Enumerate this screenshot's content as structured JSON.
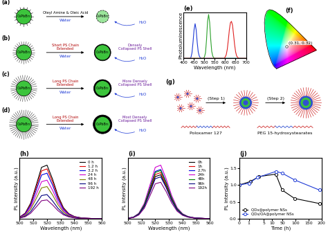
{
  "chart_data": [
    {
      "type": "line",
      "title": "(e)",
      "x_label": "Wavelength (nm)",
      "y_label": "Photoluminescence",
      "x": [
        400,
        405,
        410,
        415,
        420,
        425,
        430,
        435,
        440,
        445,
        450,
        455,
        460,
        465,
        470,
        475,
        480,
        485,
        490,
        495,
        500,
        505,
        510,
        515,
        520,
        525,
        530,
        535,
        540,
        545,
        550,
        555,
        560,
        565,
        570,
        575,
        580,
        585,
        590,
        595,
        600,
        605,
        610,
        615,
        620,
        625,
        630,
        635,
        640,
        645,
        650,
        655,
        660,
        665,
        670,
        675,
        680,
        685,
        690,
        695,
        700
      ],
      "series": [
        {
          "color": "#1f3bd6",
          "values": [
            0,
            0,
            0,
            0,
            0,
            0,
            0,
            0.02,
            0.12,
            0.35,
            0.62,
            0.75,
            0.62,
            0.35,
            0.14,
            0.05,
            0.01,
            0,
            0,
            0,
            0,
            0,
            0,
            0,
            0,
            0,
            0,
            0,
            0,
            0,
            0,
            0,
            0,
            0,
            0,
            0,
            0,
            0,
            0,
            0,
            0,
            0,
            0,
            0,
            0,
            0,
            0,
            0,
            0,
            0,
            0,
            0,
            0,
            0,
            0,
            0,
            0,
            0,
            0,
            0,
            0
          ]
        },
        {
          "color": "#2aa02a",
          "values": [
            0,
            0,
            0,
            0,
            0,
            0,
            0,
            0,
            0,
            0,
            0,
            0,
            0,
            0,
            0,
            0,
            0,
            0,
            0,
            0,
            0.03,
            0.12,
            0.4,
            0.8,
            0.95,
            0.78,
            0.42,
            0.15,
            0.05,
            0.01,
            0,
            0,
            0,
            0,
            0,
            0,
            0,
            0,
            0,
            0,
            0,
            0,
            0,
            0,
            0,
            0,
            0,
            0,
            0,
            0,
            0,
            0,
            0,
            0,
            0,
            0,
            0,
            0,
            0,
            0,
            0
          ]
        },
        {
          "color": "#e02020",
          "values": [
            0,
            0,
            0,
            0,
            0,
            0,
            0,
            0,
            0,
            0,
            0,
            0,
            0,
            0,
            0,
            0,
            0,
            0,
            0,
            0,
            0,
            0,
            0,
            0,
            0,
            0,
            0,
            0,
            0,
            0,
            0,
            0,
            0,
            0,
            0,
            0,
            0,
            0,
            0,
            0,
            0.03,
            0.08,
            0.2,
            0.4,
            0.62,
            0.77,
            0.8,
            0.72,
            0.52,
            0.3,
            0.14,
            0.05,
            0.02,
            0,
            0,
            0,
            0,
            0,
            0,
            0,
            0
          ]
        }
      ],
      "xlim": [
        400,
        700
      ],
      "xticks": [
        400,
        450,
        500,
        550,
        600,
        650,
        700
      ],
      "ylim": [
        0,
        1
      ],
      "tick_labels": "x"
    },
    {
      "type": "line",
      "title": "(h)",
      "x_label": "Wavelength (nm)",
      "y_label": "PL intensity (a.u.)",
      "x": [
        500,
        504,
        508,
        512,
        516,
        520,
        524,
        528,
        532,
        536,
        540,
        544,
        548,
        552,
        556,
        560
      ],
      "series": [
        {
          "name": "0 h",
          "color": "#000000",
          "values": [
            0.03,
            0.1,
            0.28,
            0.6,
            0.93,
            0.97,
            0.72,
            0.42,
            0.2,
            0.09,
            0.04,
            0.02,
            0.01,
            0.005,
            0,
            0
          ]
        },
        {
          "name": "1.2 h",
          "color": "#e00000",
          "values": [
            0.028,
            0.093,
            0.26,
            0.558,
            0.865,
            0.902,
            0.67,
            0.391,
            0.186,
            0.084,
            0.037,
            0.019,
            0.009,
            0.005,
            0,
            0
          ]
        },
        {
          "name": "3.2 h",
          "color": "#0000e0",
          "values": [
            0.026,
            0.085,
            0.238,
            0.51,
            0.791,
            0.825,
            0.612,
            0.357,
            0.17,
            0.077,
            0.034,
            0.017,
            0.009,
            0.004,
            0,
            0
          ]
        },
        {
          "name": "24 h",
          "color": "#d000d0",
          "values": [
            0.022,
            0.072,
            0.202,
            0.432,
            0.67,
            0.698,
            0.518,
            0.302,
            0.144,
            0.065,
            0.029,
            0.014,
            0.007,
            0.004,
            0,
            0
          ]
        },
        {
          "name": "48 h",
          "color": "#808000",
          "values": [
            0.018,
            0.06,
            0.168,
            0.36,
            0.558,
            0.582,
            0.432,
            0.252,
            0.12,
            0.054,
            0.024,
            0.012,
            0.006,
            0.003,
            0,
            0
          ]
        },
        {
          "name": "96 h",
          "color": "#000080",
          "values": [
            0.014,
            0.045,
            0.126,
            0.27,
            0.419,
            0.437,
            0.324,
            0.189,
            0.09,
            0.041,
            0.018,
            0.009,
            0.005,
            0.002,
            0,
            0
          ]
        },
        {
          "name": "192 h",
          "color": "#800080",
          "values": [
            0.011,
            0.035,
            0.098,
            0.21,
            0.326,
            0.34,
            0.252,
            0.147,
            0.07,
            0.032,
            0.014,
            0.007,
            0.004,
            0.002,
            0,
            0
          ]
        }
      ],
      "xlim": [
        500,
        560
      ],
      "xticks": [
        500,
        510,
        520,
        530,
        540,
        550,
        560
      ],
      "ylim": [
        0,
        1.1
      ],
      "tick_labels": "x",
      "legend": "upper right"
    },
    {
      "type": "line",
      "title": "(i)",
      "x_label": "Wavelength (nm)",
      "y_label": "PL intensity (a.u.)",
      "x": [
        500,
        504,
        508,
        512,
        516,
        520,
        524,
        528,
        532,
        536,
        540,
        544,
        548,
        552,
        556,
        560
      ],
      "series": [
        {
          "name": "0h",
          "color": "#000000",
          "values": [
            0.008,
            0.025,
            0.082,
            0.23,
            0.492,
            0.763,
            0.795,
            0.59,
            0.344,
            0.164,
            0.074,
            0.033,
            0.016,
            0.008,
            0.004,
            0
          ]
        },
        {
          "name": "1h",
          "color": "#e00000",
          "values": [
            0.009,
            0.026,
            0.086,
            0.241,
            0.516,
            0.8,
            0.834,
            0.619,
            0.361,
            0.172,
            0.077,
            0.034,
            0.017,
            0.009,
            0.004,
            0
          ]
        },
        {
          "name": "2.7h",
          "color": "#0000e0",
          "values": [
            0.009,
            0.028,
            0.092,
            0.258,
            0.552,
            0.856,
            0.892,
            0.662,
            0.386,
            0.184,
            0.083,
            0.037,
            0.018,
            0.009,
            0.005,
            0
          ]
        },
        {
          "name": "24h",
          "color": "#d000d0",
          "values": [
            0.01,
            0.03,
            0.1,
            0.28,
            0.6,
            0.93,
            0.97,
            0.72,
            0.42,
            0.2,
            0.09,
            0.04,
            0.02,
            0.01,
            0.005,
            0
          ]
        },
        {
          "name": "48h",
          "color": "#008000",
          "values": [
            0.009,
            0.027,
            0.09,
            0.252,
            0.54,
            0.837,
            0.873,
            0.648,
            0.378,
            0.18,
            0.081,
            0.036,
            0.018,
            0.009,
            0.005,
            0
          ]
        },
        {
          "name": "96h",
          "color": "#000080",
          "values": [
            0.008,
            0.023,
            0.078,
            0.218,
            0.468,
            0.725,
            0.757,
            0.562,
            0.328,
            0.156,
            0.07,
            0.031,
            0.016,
            0.008,
            0.004,
            0
          ]
        },
        {
          "name": "192h",
          "color": "#800080",
          "values": [
            0.007,
            0.02,
            0.068,
            0.19,
            0.408,
            0.632,
            0.66,
            0.49,
            0.286,
            0.136,
            0.061,
            0.027,
            0.014,
            0.007,
            0.003,
            0
          ]
        }
      ],
      "xlim": [
        500,
        560
      ],
      "xticks": [
        500,
        510,
        520,
        530,
        540,
        550,
        560
      ],
      "ylim": [
        0,
        1.1
      ],
      "tick_labels": "x",
      "legend": "upper right"
    },
    {
      "type": "line",
      "title": "(j)",
      "x_label": "Time (h)",
      "y_label": "PL intensity (a.u.)",
      "series": [
        {
          "name": "QDs@polymer NSs",
          "color": "#000000",
          "marker": "o",
          "line_style": "solid",
          "x": [
            0,
            1.2,
            3.2,
            24,
            48,
            96,
            192
          ],
          "values": [
            1.0,
            1.1,
            1.25,
            1.32,
            0.85,
            0.6,
            0.45
          ]
        },
        {
          "name": "QDs/OA@polymer NSs",
          "color": "#1f3bd6",
          "marker": "o",
          "line_style": "solid",
          "x": [
            0,
            1,
            2.7,
            24,
            48,
            96,
            192
          ],
          "values": [
            1.0,
            1.05,
            1.22,
            1.4,
            1.35,
            1.15,
            0.85
          ]
        }
      ],
      "xlim": [
        0,
        200
      ],
      "xticks": [
        0,
        1,
        5,
        10,
        50,
        100,
        150,
        200
      ],
      "ylim": [
        0,
        1.8
      ],
      "yticks": [
        {
          "value": 0,
          "label": "0.0"
        },
        0.5,
        {
          "value": 1,
          "label": "1.0"
        },
        1.5
      ],
      "legend": "lower left"
    }
  ],
  "diagrams": {
    "a": {
      "label": "(a)",
      "core": "CsPbBr₃",
      "ligand": "Oleyl Amine & Oleic Acid",
      "medium": "Water",
      "product": "H₂O"
    },
    "b": {
      "label": "(b)",
      "core": "CsPbBr₃",
      "shell": "Short PS Chain\nExtended",
      "medium": "Water",
      "result": "Densely\nCollapsed PS Shell",
      "product": "H₂O"
    },
    "c": {
      "label": "(c)",
      "core": "CsPbBr₃",
      "shell": "Long PS Chain\nExtended",
      "medium": "Water",
      "result": "More Densely\nCollapsed PS Shell",
      "product": "H₂O"
    },
    "d": {
      "label": "(d)",
      "core": "CsPbBr₃",
      "shell": "Long PS Chain\nExtended",
      "medium": "Water",
      "result": "Most Densely\nCollapsed PS Shell",
      "product": "H₂O"
    },
    "f": {
      "label": "(f)",
      "point": {
        "x": 0.31,
        "y": 0.32,
        "label": "(0.31, 0.32)"
      }
    },
    "g": {
      "label": "(g)",
      "steps": [
        "(Step 1)",
        "(Step 2)"
      ],
      "molecules": [
        "Poloxamer 127",
        "PEG 15-hydroxystearates"
      ]
    }
  }
}
